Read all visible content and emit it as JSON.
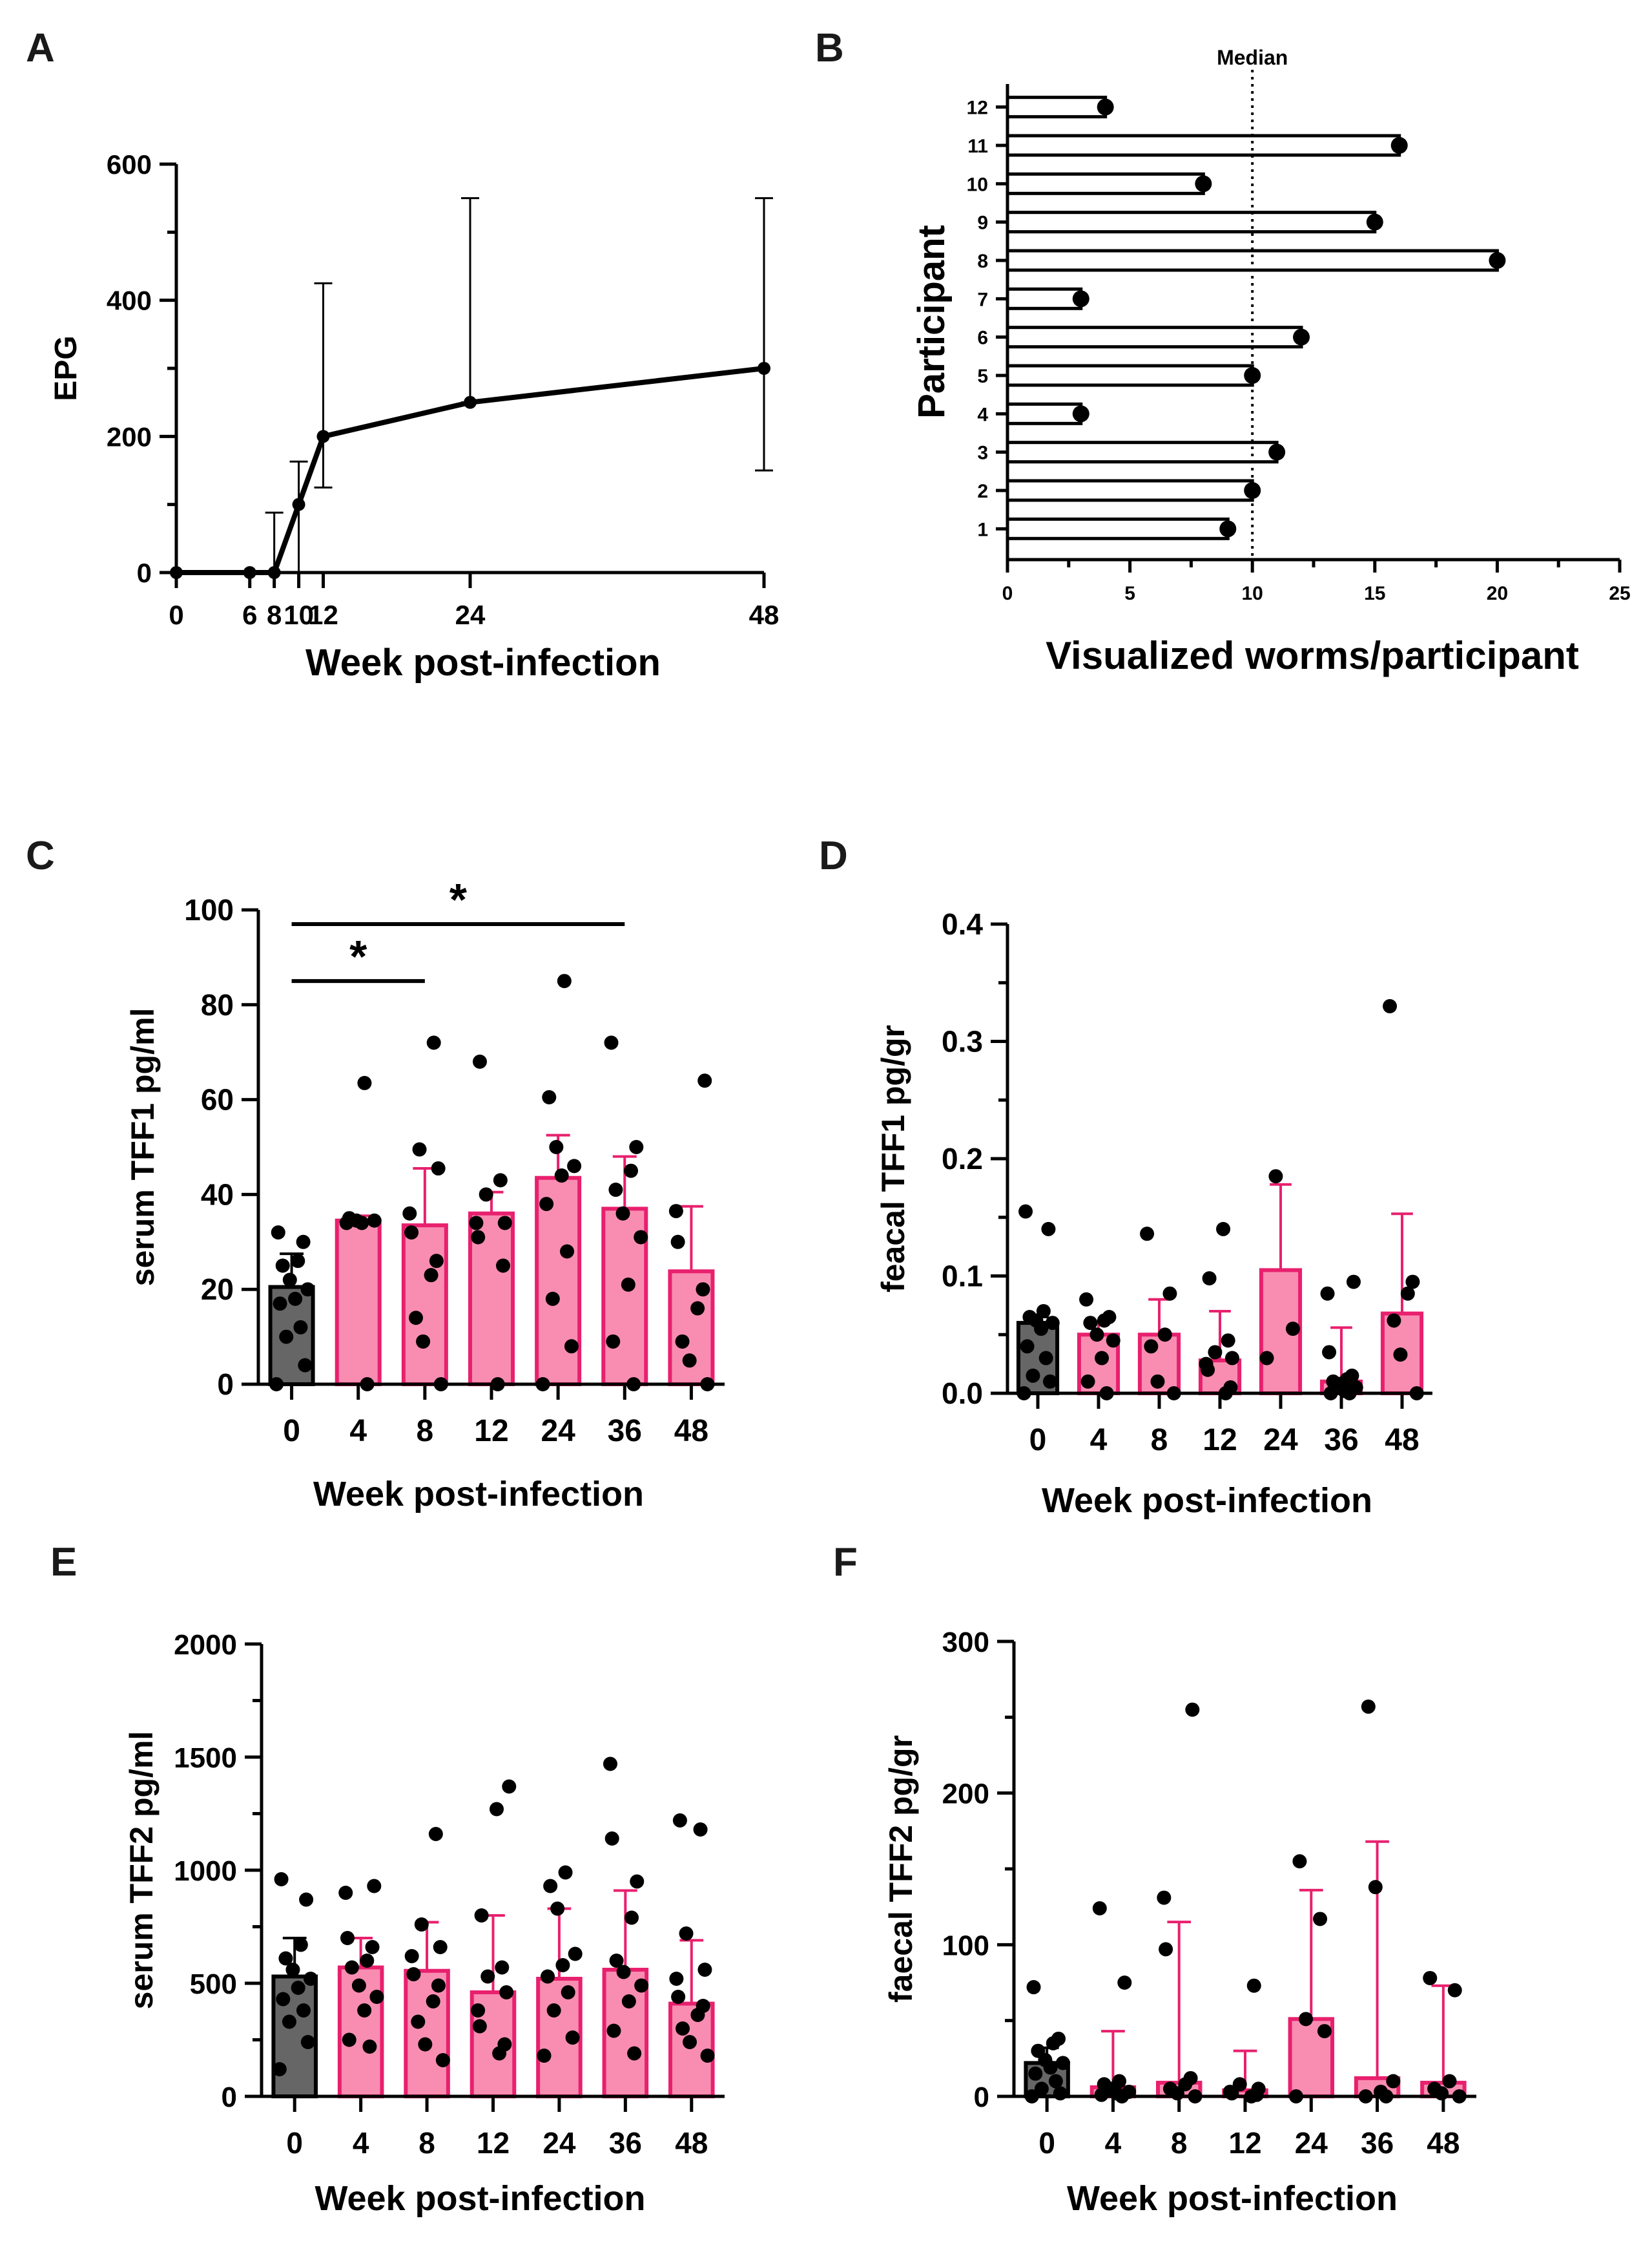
{
  "colors": {
    "control": "#666666",
    "infected": "#f98db1",
    "infected_edge": "#e8206e",
    "ink": "#000000"
  },
  "chart_data": [
    {
      "panel": "A",
      "type": "line",
      "title": "",
      "xlabel": "Week post-infection",
      "ylabel": "EPG",
      "x": [
        0,
        6,
        8,
        10,
        12,
        24,
        48
      ],
      "y": [
        0,
        0,
        0,
        100,
        200,
        250,
        300
      ],
      "error_upper": [
        0,
        0,
        88,
        163,
        425,
        550,
        550
      ],
      "error_lower": [
        0,
        0,
        0,
        0,
        125,
        250,
        150
      ],
      "xticks": [
        "0",
        "6",
        "8",
        "10",
        "12",
        "24",
        "48"
      ],
      "yticks": [
        "0",
        "200",
        "400",
        "600"
      ],
      "ylim": [
        0,
        600
      ],
      "xlim": [
        0,
        48
      ]
    },
    {
      "panel": "B",
      "type": "bar",
      "orientation": "horizontal",
      "xlabel": "Visualized worms/participant",
      "ylabel": "Participant",
      "categories": [
        "1",
        "2",
        "3",
        "4",
        "5",
        "6",
        "7",
        "8",
        "9",
        "10",
        "11",
        "12"
      ],
      "values": [
        9,
        10,
        11,
        3,
        10,
        12,
        3,
        20,
        15,
        8,
        16,
        4
      ],
      "median": 10,
      "median_label": "Median",
      "xticks": [
        "0",
        "5",
        "10",
        "15",
        "20",
        "25"
      ],
      "xlim": [
        0,
        25
      ]
    },
    {
      "panel": "C",
      "type": "bar",
      "xlabel": "Week post-infection",
      "ylabel": "serum TFF1 pg/ml",
      "categories": [
        "0",
        "4",
        "8",
        "12",
        "24",
        "36",
        "48"
      ],
      "values": [
        20.5,
        34.5,
        33.5,
        36,
        43.5,
        37,
        23.8
      ],
      "error_upper": [
        27.5,
        35.5,
        45.5,
        40.5,
        52.5,
        48,
        37.5
      ],
      "points": [
        [
          0,
          4,
          10,
          12,
          17,
          18,
          20,
          22,
          25,
          26,
          30,
          32
        ],
        [
          0,
          34,
          34,
          34.5,
          34.5,
          35,
          63.5
        ],
        [
          0,
          9,
          14,
          23,
          26,
          32,
          36,
          45.5,
          49.5,
          72
        ],
        [
          0,
          25,
          31,
          34,
          34,
          40,
          43,
          68
        ],
        [
          0,
          8,
          18,
          28,
          38,
          44,
          46,
          50,
          60.5,
          85
        ],
        [
          0,
          9,
          21,
          31,
          36,
          41,
          45,
          50,
          72
        ],
        [
          0,
          5,
          9,
          16,
          20,
          30,
          36.5,
          64
        ]
      ],
      "yticks": [
        "0",
        "20",
        "40",
        "60",
        "80",
        "100"
      ],
      "ylim": [
        0,
        100
      ],
      "significance": [
        {
          "from": "0",
          "to": "8",
          "label": "*",
          "y": 85
        },
        {
          "from": "0",
          "to": "36",
          "label": "*",
          "y": 97
        }
      ]
    },
    {
      "panel": "D",
      "type": "bar",
      "xlabel": "Week post-infection",
      "ylabel": "feacal TFF1 pg/gr",
      "categories": [
        "0",
        "4",
        "8",
        "12",
        "24",
        "36",
        "48"
      ],
      "values": [
        0.06,
        0.05,
        0.05,
        0.028,
        0.105,
        0.01,
        0.068
      ],
      "error_upper": [
        0.065,
        0.06,
        0.08,
        0.07,
        0.178,
        0.056,
        0.153
      ],
      "points": [
        [
          0,
          0.01,
          0.015,
          0.03,
          0.04,
          0.055,
          0.06,
          0.062,
          0.065,
          0.07,
          0.14,
          0.155
        ],
        [
          0,
          0.01,
          0.03,
          0.045,
          0.05,
          0.06,
          0.062,
          0.065,
          0.08
        ],
        [
          0,
          0.01,
          0.04,
          0.05,
          0.085,
          0.136
        ],
        [
          0,
          0.005,
          0.02,
          0.025,
          0.03,
          0.035,
          0.045,
          0.098,
          0.14
        ],
        [
          0.03,
          0.055,
          0.185
        ],
        [
          0,
          0,
          0.002,
          0.005,
          0.008,
          0.01,
          0.012,
          0.015,
          0.035,
          0.085,
          0.095
        ],
        [
          0,
          0.033,
          0.062,
          0.085,
          0.095,
          0.33
        ]
      ],
      "yticks": [
        "0.0",
        "0.1",
        "0.2",
        "0.3",
        "0.4"
      ],
      "ylim": [
        0,
        0.4
      ]
    },
    {
      "panel": "E",
      "type": "bar",
      "xlabel": "Week post-infection",
      "ylabel": "serum TFF2 pg/ml",
      "categories": [
        "0",
        "4",
        "8",
        "12",
        "24",
        "36",
        "48"
      ],
      "values": [
        530,
        570,
        555,
        460,
        520,
        560,
        410
      ],
      "error_upper": [
        700,
        700,
        770,
        800,
        830,
        910,
        690
      ],
      "points": [
        [
          120,
          240,
          330,
          380,
          430,
          480,
          520,
          560,
          610,
          670,
          870,
          960
        ],
        [
          220,
          250,
          380,
          440,
          490,
          570,
          600,
          660,
          700,
          900,
          930
        ],
        [
          160,
          230,
          330,
          420,
          490,
          540,
          620,
          660,
          760,
          1160
        ],
        [
          190,
          230,
          310,
          380,
          460,
          530,
          570,
          800,
          1270,
          1370
        ],
        [
          180,
          260,
          380,
          460,
          530,
          580,
          630,
          830,
          930,
          990
        ],
        [
          190,
          290,
          420,
          490,
          550,
          600,
          790,
          950,
          1140,
          1470
        ],
        [
          180,
          240,
          300,
          360,
          400,
          440,
          520,
          560,
          720,
          1180,
          1220
        ]
      ],
      "yticks": [
        "0",
        "500",
        "1000",
        "1500",
        "2000"
      ],
      "ylim": [
        0,
        2000
      ]
    },
    {
      "panel": "F",
      "type": "bar",
      "xlabel": "Week post-infection",
      "ylabel": "faecal TFF2 pg/gr",
      "categories": [
        "0",
        "4",
        "8",
        "12",
        "24",
        "36",
        "48"
      ],
      "values": [
        22,
        6,
        9,
        4,
        51,
        12,
        9
      ],
      "error_upper": [
        32,
        43,
        115,
        30,
        136,
        168,
        73
      ],
      "points": [
        [
          0,
          2,
          5,
          10,
          15,
          19,
          22,
          24,
          30,
          35,
          38,
          72
        ],
        [
          0,
          1,
          2,
          3,
          5,
          8,
          10,
          75,
          124
        ],
        [
          0,
          2,
          5,
          8,
          12,
          97,
          131,
          255
        ],
        [
          0,
          1,
          2,
          3,
          5,
          8,
          73
        ],
        [
          0,
          43,
          51,
          117,
          155
        ],
        [
          0,
          0,
          3,
          10,
          138,
          257
        ],
        [
          0,
          2,
          5,
          10,
          70,
          78
        ]
      ],
      "yticks": [
        "0",
        "100",
        "200",
        "300"
      ],
      "ylim": [
        0,
        300
      ]
    }
  ]
}
